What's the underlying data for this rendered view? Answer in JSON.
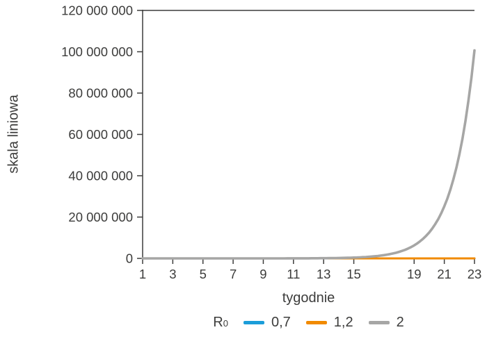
{
  "colors": {
    "background": "#ffffff",
    "axis": "#3c3c3b",
    "text": "#3c3c3b",
    "blue": "#1b9dd9",
    "orange": "#f18a00",
    "gray": "#a6a6a5"
  },
  "y_axis": {
    "label": "skala liniowa",
    "ticks": [
      {
        "value": 0,
        "label": "0"
      },
      {
        "value": 20000000,
        "label": "20 000 000"
      },
      {
        "value": 40000000,
        "label": "40 000 000"
      },
      {
        "value": 60000000,
        "label": "60 000 000"
      },
      {
        "value": 80000000,
        "label": "80 000 000"
      },
      {
        "value": 100000000,
        "label": "100 000 000"
      },
      {
        "value": 120000000,
        "label": "120 000 000"
      }
    ]
  },
  "x_axis": {
    "label": "tygodnie",
    "ticks": [
      {
        "value": 1,
        "label": "1"
      },
      {
        "value": 3,
        "label": "3"
      },
      {
        "value": 5,
        "label": "5"
      },
      {
        "value": 7,
        "label": "7"
      },
      {
        "value": 9,
        "label": "9"
      },
      {
        "value": 11,
        "label": "11"
      },
      {
        "value": 13,
        "label": "13"
      },
      {
        "value": 15,
        "label": "15"
      },
      {
        "value": 19,
        "label": "19"
      },
      {
        "value": 21,
        "label": "21"
      },
      {
        "value": 23,
        "label": "23"
      }
    ]
  },
  "legend": {
    "r_label": "R",
    "r_sub": "0",
    "items": [
      {
        "label": "0,7",
        "color": "#1b9dd9"
      },
      {
        "label": "1,2",
        "color": "#f18a00"
      },
      {
        "label": "2",
        "color": "#a6a6a5"
      }
    ]
  },
  "chart_data": {
    "type": "line",
    "title": "",
    "xlabel": "tygodnie",
    "ylabel": "skala liniowa",
    "xlim": [
      1,
      23
    ],
    "ylim": [
      0,
      120000000
    ],
    "grid": false,
    "legend_position": "bottom",
    "legend_title": "R0",
    "x": [
      1,
      2,
      3,
      4,
      5,
      6,
      7,
      8,
      9,
      10,
      11,
      12,
      13,
      14,
      15,
      16,
      17,
      18,
      19,
      20,
      21,
      22,
      23
    ],
    "series": [
      {
        "name": "0,7",
        "color": "#1b9dd9",
        "values": [
          24,
          17,
          12,
          8,
          6,
          4,
          3,
          2,
          1,
          1,
          1,
          0,
          0,
          0,
          0,
          0,
          0,
          0,
          0,
          0,
          0,
          0,
          0
        ]
      },
      {
        "name": "1,2",
        "color": "#f18a00",
        "values": [
          24,
          29,
          35,
          41,
          50,
          60,
          72,
          86,
          103,
          124,
          149,
          178,
          214,
          257,
          308,
          370,
          444,
          532,
          639,
          767,
          920,
          1104,
          1325
        ]
      },
      {
        "name": "2",
        "color": "#a6a6a5",
        "values": [
          24,
          48,
          96,
          192,
          384,
          768,
          1536,
          3072,
          6144,
          12288,
          24576,
          49152,
          98304,
          196608,
          393216,
          786432,
          1572864,
          3145728,
          6291456,
          12582912,
          25165824,
          50331648,
          100663296
        ]
      }
    ]
  }
}
